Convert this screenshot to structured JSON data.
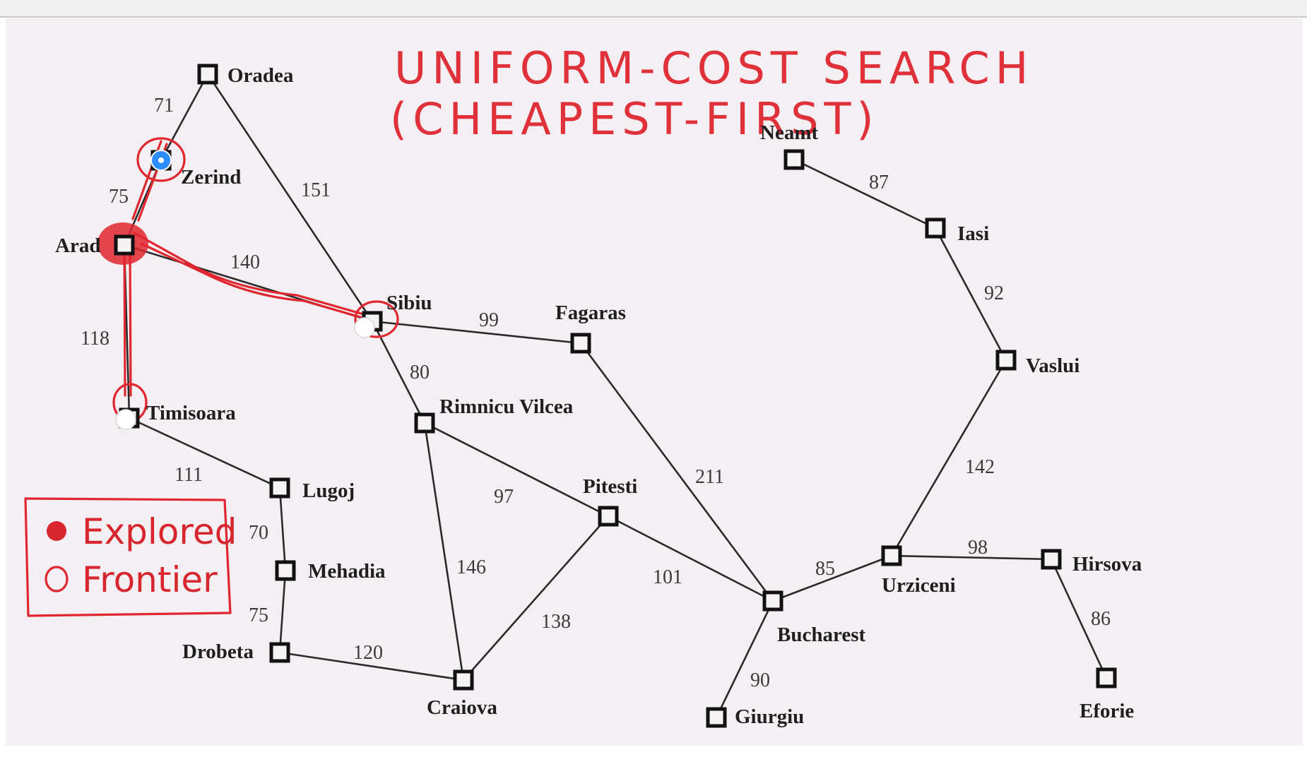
{
  "title": {
    "line1": "UNIFORM-COST SEARCH",
    "line2": "(CHEAPEST-FIRST)"
  },
  "legend": {
    "explored": "Explored",
    "frontier": "Frontier"
  },
  "colors": {
    "ink": "#e0262e",
    "board": "#f4eff3",
    "marker_blue": "#2a8cff"
  },
  "cities": [
    {
      "id": "oradea",
      "name": "Oradea"
    },
    {
      "id": "zerind",
      "name": "Zerind"
    },
    {
      "id": "arad",
      "name": "Arad"
    },
    {
      "id": "sibiu",
      "name": "Sibiu"
    },
    {
      "id": "fagaras",
      "name": "Fagaras"
    },
    {
      "id": "timisoara",
      "name": "Timisoara"
    },
    {
      "id": "lugoj",
      "name": "Lugoj"
    },
    {
      "id": "mehadia",
      "name": "Mehadia"
    },
    {
      "id": "drobeta",
      "name": "Drobeta"
    },
    {
      "id": "craiova",
      "name": "Craiova"
    },
    {
      "id": "rimnicu",
      "name": "Rimnicu Vilcea"
    },
    {
      "id": "pitesti",
      "name": "Pitesti"
    },
    {
      "id": "bucharest",
      "name": "Bucharest"
    },
    {
      "id": "giurgiu",
      "name": "Giurgiu"
    },
    {
      "id": "urziceni",
      "name": "Urziceni"
    },
    {
      "id": "hirsova",
      "name": "Hirsova"
    },
    {
      "id": "eforie",
      "name": "Eforie"
    },
    {
      "id": "vaslui",
      "name": "Vaslui"
    },
    {
      "id": "iasi",
      "name": "Iasi"
    },
    {
      "id": "neamt",
      "name": "Neamt"
    }
  ],
  "roads": [
    {
      "from": "oradea",
      "to": "zerind",
      "cost": "71"
    },
    {
      "from": "zerind",
      "to": "arad",
      "cost": "75"
    },
    {
      "from": "oradea",
      "to": "sibiu",
      "cost": "151"
    },
    {
      "from": "arad",
      "to": "sibiu",
      "cost": "140"
    },
    {
      "from": "arad",
      "to": "timisoara",
      "cost": "118"
    },
    {
      "from": "sibiu",
      "to": "fagaras",
      "cost": "99"
    },
    {
      "from": "sibiu",
      "to": "rimnicu",
      "cost": "80"
    },
    {
      "from": "timisoara",
      "to": "lugoj",
      "cost": "111"
    },
    {
      "from": "lugoj",
      "to": "mehadia",
      "cost": "70"
    },
    {
      "from": "mehadia",
      "to": "drobeta",
      "cost": "75"
    },
    {
      "from": "drobeta",
      "to": "craiova",
      "cost": "120"
    },
    {
      "from": "rimnicu",
      "to": "craiova",
      "cost": "146"
    },
    {
      "from": "rimnicu",
      "to": "pitesti",
      "cost": "97"
    },
    {
      "from": "craiova",
      "to": "pitesti",
      "cost": "138"
    },
    {
      "from": "pitesti",
      "to": "bucharest",
      "cost": "101"
    },
    {
      "from": "fagaras",
      "to": "bucharest",
      "cost": "211"
    },
    {
      "from": "bucharest",
      "to": "giurgiu",
      "cost": "90"
    },
    {
      "from": "bucharest",
      "to": "urziceni",
      "cost": "85"
    },
    {
      "from": "urziceni",
      "to": "hirsova",
      "cost": "98"
    },
    {
      "from": "hirsova",
      "to": "eforie",
      "cost": "86"
    },
    {
      "from": "urziceni",
      "to": "vaslui",
      "cost": "142"
    },
    {
      "from": "vaslui",
      "to": "iasi",
      "cost": "92"
    },
    {
      "from": "iasi",
      "to": "neamt",
      "cost": "87"
    }
  ]
}
